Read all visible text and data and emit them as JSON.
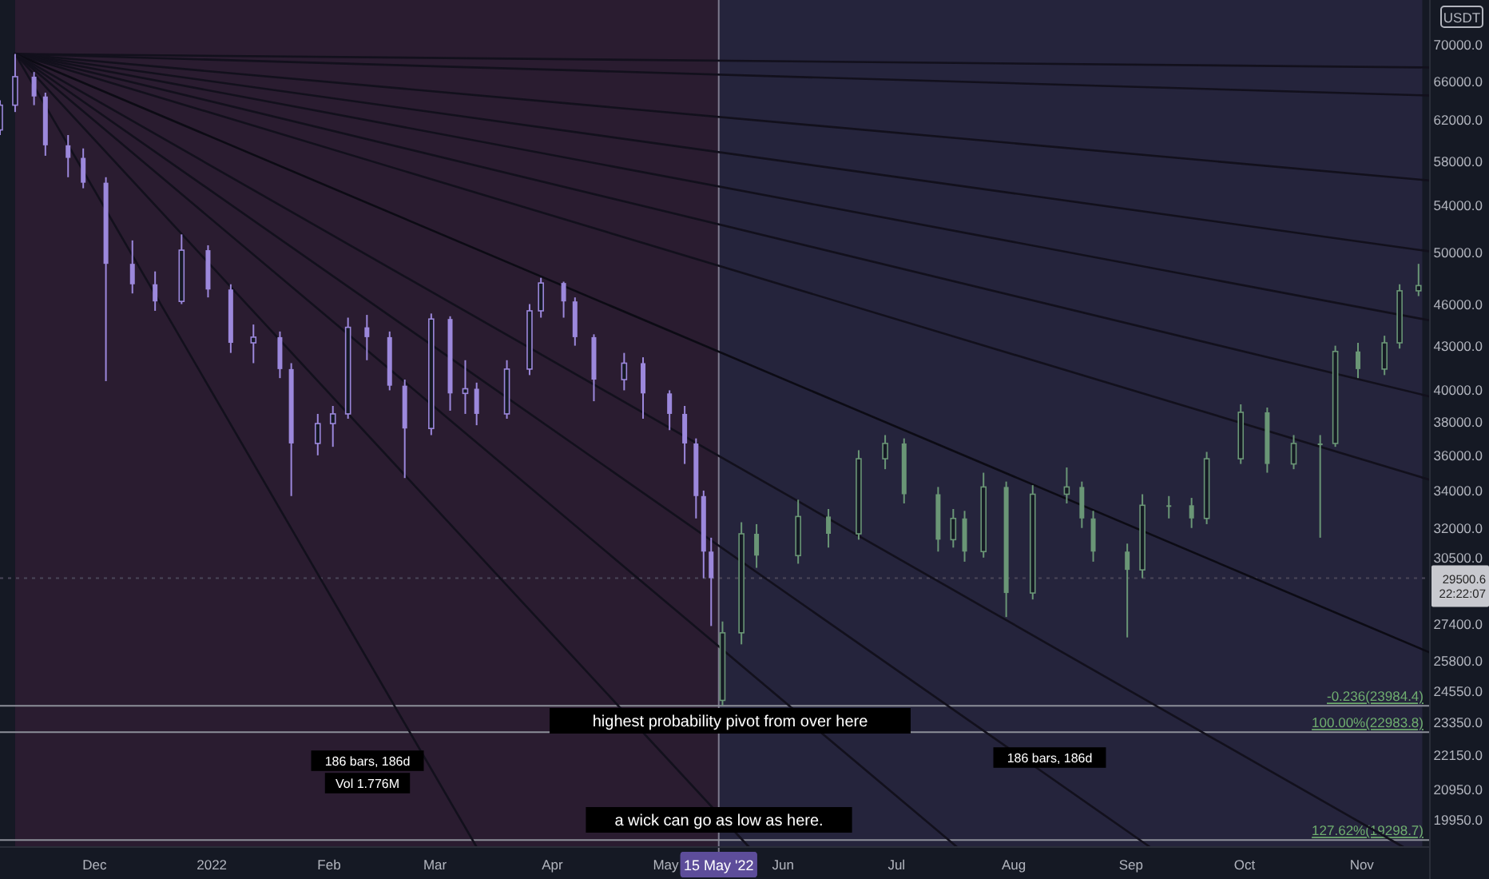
{
  "chart_data": {
    "type": "candlestick",
    "ylabel": "USDT",
    "log": "y",
    "xlim": [
      "2021-11-06",
      "2022-11-19"
    ],
    "ylim": [
      19080,
      75300
    ],
    "xticks": [
      {
        "value": "2021-12-01",
        "label": "Dec"
      },
      {
        "value": "2022-01-01",
        "label": "2022"
      },
      {
        "value": "2022-02-01",
        "label": "Feb"
      },
      {
        "value": "2022-03-01",
        "label": "Mar"
      },
      {
        "value": "2022-04-01",
        "label": "Apr"
      },
      {
        "value": "2022-05-01",
        "label": "May"
      },
      {
        "value": "2022-06-01",
        "label": "Jun"
      },
      {
        "value": "2022-07-01",
        "label": "Jul"
      },
      {
        "value": "2022-08-01",
        "label": "Aug"
      },
      {
        "value": "2022-09-01",
        "label": "Sep"
      },
      {
        "value": "2022-10-01",
        "label": "Oct"
      },
      {
        "value": "2022-11-01",
        "label": "Nov"
      }
    ],
    "yticks": [
      {
        "value": 70000,
        "label": "70000.0"
      },
      {
        "value": 66000,
        "label": "66000.0"
      },
      {
        "value": 62000,
        "label": "62000.0"
      },
      {
        "value": 58000,
        "label": "58000.0"
      },
      {
        "value": 54000,
        "label": "54000.0"
      },
      {
        "value": 50000,
        "label": "50000.0"
      },
      {
        "value": 46000,
        "label": "46000.0"
      },
      {
        "value": 43000,
        "label": "43000.0"
      },
      {
        "value": 40000,
        "label": "40000.0"
      },
      {
        "value": 38000,
        "label": "38000.0"
      },
      {
        "value": 36000,
        "label": "36000.0"
      },
      {
        "value": 34000,
        "label": "34000.0"
      },
      {
        "value": 32000,
        "label": "32000.0"
      },
      {
        "value": 30500,
        "label": "30500.0"
      },
      {
        "value": 27400,
        "label": "27400.0"
      },
      {
        "value": 25800,
        "label": "25800.0"
      },
      {
        "value": 24550,
        "label": "24550.0"
      },
      {
        "value": 23350,
        "label": "23350.0"
      },
      {
        "value": 22150,
        "label": "22150.0"
      },
      {
        "value": 20950,
        "label": "20950.0"
      },
      {
        "value": 19950,
        "label": "19950.0"
      }
    ],
    "bands": [
      {
        "axis": "x",
        "from": "2021-11-10",
        "to": "2022-05-15",
        "color": "#2a1c30"
      },
      {
        "axis": "x",
        "from": "2022-05-15",
        "to": "2022-11-17",
        "color": "#25243c"
      }
    ],
    "ref_lines": [
      {
        "axis": "y",
        "value": 29500.6,
        "label": "29500.6",
        "color": "#4a4658",
        "line_style": "dotted"
      },
      {
        "axis": "x",
        "value": "2022-05-15",
        "label": "15 May '22",
        "color": "#7d7a8c",
        "line_style": "solid"
      },
      {
        "axis": "y",
        "value": 23984.4,
        "label": "-0.236(23984.4)",
        "color": "#8d8f99",
        "line_style": "solid"
      },
      {
        "axis": "y",
        "value": 22983.8,
        "label": "100.00%(22983.8)",
        "color": "#8d8f99",
        "line_style": "solid"
      },
      {
        "axis": "y",
        "value": 19298.7,
        "label": "127.62%(19298.7)",
        "color": "#8d8f99",
        "line_style": "solid"
      }
    ],
    "annotations": [
      "22:22:07",
      "highest probability pivot from over here",
      "a wick can go as low as here.",
      "186 bars, 186d",
      "Vol 1.776M",
      "186 bars, 186d"
    ],
    "series": [
      {
        "type": "line",
        "color": "#12101c",
        "x": [
          "2021-11-10",
          "2022-11-19"
        ],
        "values": [
          69000,
          67500
        ]
      },
      {
        "type": "line",
        "color": "#12101c",
        "x": [
          "2021-11-10",
          "2022-11-19"
        ],
        "values": [
          69000,
          64500
        ]
      },
      {
        "type": "line",
        "color": "#12101c",
        "x": [
          "2021-11-10",
          "2022-11-19"
        ],
        "values": [
          69000,
          56200
        ]
      },
      {
        "type": "line",
        "color": "#12101c",
        "x": [
          "2021-11-10",
          "2022-11-19"
        ],
        "values": [
          69000,
          50100
        ]
      },
      {
        "type": "line",
        "color": "#12101c",
        "x": [
          "2021-11-10",
          "2022-11-19"
        ],
        "values": [
          69000,
          44800
        ]
      },
      {
        "type": "line",
        "color": "#12101c",
        "x": [
          "2021-11-10",
          "2022-11-19"
        ],
        "values": [
          69000,
          39600
        ]
      },
      {
        "type": "line",
        "color": "#12101c",
        "x": [
          "2021-11-10",
          "2022-11-19"
        ],
        "values": [
          69000,
          34600
        ]
      },
      {
        "type": "line",
        "color": "#0c0b14",
        "x": [
          "2021-11-10",
          "2022-11-19"
        ],
        "values": [
          69000,
          26150
        ]
      },
      {
        "type": "line",
        "color": "#12101c",
        "x": [
          "2021-11-10",
          "2022-03-12"
        ],
        "values": [
          69000,
          19080
        ]
      },
      {
        "type": "line",
        "color": "#12101c",
        "x": [
          "2021-11-10",
          "2022-05-23"
        ],
        "values": [
          69000,
          19080
        ]
      },
      {
        "type": "line",
        "color": "#12101c",
        "x": [
          "2021-11-10",
          "2022-07-17"
        ],
        "values": [
          69000,
          19080
        ]
      },
      {
        "type": "line",
        "color": "#12101c",
        "x": [
          "2021-11-10",
          "2022-09-06"
        ],
        "values": [
          69000,
          19080
        ]
      },
      {
        "type": "line",
        "color": "#12101c",
        "x": [
          "2021-11-10",
          "2022-11-12"
        ],
        "values": [
          69000,
          19080
        ]
      },
      {
        "color": "#9c88dc",
        "x": [
          "2021-11-06",
          "2021-11-10",
          "2021-11-15",
          "2021-11-18",
          "2021-11-24",
          "2021-11-28",
          "2021-12-04",
          "2021-12-11",
          "2021-12-17",
          "2021-12-24",
          "2021-12-31",
          "2022-01-06",
          "2022-01-12",
          "2022-01-19",
          "2022-01-22",
          "2022-01-29",
          "2022-02-02",
          "2022-02-06",
          "2022-02-11",
          "2022-02-17",
          "2022-02-21",
          "2022-02-28",
          "2022-03-05",
          "2022-03-09",
          "2022-03-12",
          "2022-03-20",
          "2022-03-26",
          "2022-03-29",
          "2022-04-04",
          "2022-04-07",
          "2022-04-12",
          "2022-04-20",
          "2022-04-25",
          "2022-05-02",
          "2022-05-06",
          "2022-05-09",
          "2022-05-11",
          "2022-05-13"
        ],
        "ohlc": [
          [
            61000,
            64000,
            60500,
            63500
          ],
          [
            63500,
            69000,
            62800,
            66500
          ],
          [
            66500,
            67000,
            63500,
            64400
          ],
          [
            64400,
            64800,
            58500,
            59500
          ],
          [
            59500,
            60500,
            56500,
            58300
          ],
          [
            58300,
            59200,
            55500,
            56000
          ],
          [
            56000,
            56500,
            40600,
            49100
          ],
          [
            49100,
            51000,
            46800,
            47500
          ],
          [
            47500,
            48500,
            45500,
            46200
          ],
          [
            46200,
            51500,
            46000,
            50200
          ],
          [
            50200,
            50600,
            46500,
            47100
          ],
          [
            47100,
            47500,
            42500,
            43200
          ],
          [
            43200,
            44500,
            41800,
            43600
          ],
          [
            43600,
            44000,
            40800,
            41400
          ],
          [
            41400,
            41800,
            33700,
            36700
          ],
          [
            36700,
            38500,
            36000,
            37900
          ],
          [
            37900,
            39000,
            36500,
            38500
          ],
          [
            38500,
            45000,
            38200,
            44300
          ],
          [
            44300,
            45200,
            42000,
            43600
          ],
          [
            43600,
            44000,
            40000,
            40300
          ],
          [
            40300,
            40700,
            34700,
            37600
          ],
          [
            37600,
            45300,
            37200,
            44900
          ],
          [
            44900,
            45100,
            38700,
            39800
          ],
          [
            39800,
            42000,
            38500,
            40100
          ],
          [
            40100,
            40500,
            37800,
            38500
          ],
          [
            38500,
            42000,
            38200,
            41400
          ],
          [
            41400,
            46000,
            41000,
            45500
          ],
          [
            45500,
            48000,
            45000,
            47600
          ],
          [
            47600,
            47700,
            45000,
            46200
          ],
          [
            46200,
            46500,
            43000,
            43600
          ],
          [
            43600,
            43800,
            39300,
            40700
          ],
          [
            40700,
            42500,
            40000,
            41800
          ],
          [
            41800,
            42200,
            38200,
            39800
          ],
          [
            39800,
            40000,
            37500,
            38500
          ],
          [
            38500,
            39000,
            35500,
            36700
          ],
          [
            36700,
            37000,
            32500,
            33700
          ],
          [
            33700,
            34000,
            29500,
            30800
          ],
          [
            30800,
            31500,
            27300,
            29500
          ]
        ]
      },
      {
        "color": "#6a9676",
        "x": [
          "2022-05-16",
          "2022-05-21",
          "2022-05-25",
          "2022-06-05",
          "2022-06-13",
          "2022-06-21",
          "2022-06-28",
          "2022-07-03",
          "2022-07-12",
          "2022-07-16",
          "2022-07-19",
          "2022-07-24",
          "2022-07-30",
          "2022-08-06",
          "2022-08-15",
          "2022-08-19",
          "2022-08-22",
          "2022-08-31",
          "2022-09-04",
          "2022-09-11",
          "2022-09-17",
          "2022-09-21",
          "2022-09-30",
          "2022-10-07",
          "2022-10-14",
          "2022-10-21",
          "2022-10-25",
          "2022-10-31",
          "2022-11-07",
          "2022-11-11",
          "2022-11-16"
        ],
        "ohlc": [
          [
            24200,
            27500,
            24000,
            27000
          ],
          [
            27000,
            32300,
            26500,
            31700
          ],
          [
            31700,
            32200,
            30000,
            30600
          ],
          [
            30600,
            33500,
            30200,
            32600
          ],
          [
            32600,
            33000,
            31000,
            31700
          ],
          [
            31700,
            36300,
            31400,
            35800
          ],
          [
            35800,
            37200,
            35200,
            36700
          ],
          [
            36700,
            37000,
            33300,
            33800
          ],
          [
            33800,
            34200,
            30800,
            31400
          ],
          [
            31400,
            33000,
            31000,
            32500
          ],
          [
            32500,
            32900,
            30300,
            30800
          ],
          [
            30800,
            35000,
            30500,
            34200
          ],
          [
            34200,
            34500,
            27700,
            28800
          ],
          [
            28800,
            34300,
            28500,
            33800
          ],
          [
            33800,
            35300,
            33300,
            34200
          ],
          [
            34200,
            34500,
            32000,
            32500
          ],
          [
            32500,
            32900,
            30300,
            30800
          ],
          [
            30800,
            31200,
            26800,
            29900
          ],
          [
            29900,
            33800,
            29500,
            33200
          ],
          [
            33200,
            33700,
            32500,
            33200
          ],
          [
            33200,
            33600,
            32000,
            32500
          ],
          [
            32500,
            36200,
            32200,
            35800
          ],
          [
            35800,
            39100,
            35500,
            38600
          ],
          [
            38600,
            38900,
            35000,
            35500
          ],
          [
            35500,
            37200,
            35200,
            36700
          ],
          [
            36700,
            37200,
            31500,
            36700
          ],
          [
            36700,
            43000,
            36500,
            42600
          ],
          [
            42600,
            43200,
            40800,
            41400
          ],
          [
            41400,
            43700,
            41000,
            43200
          ],
          [
            43200,
            47500,
            42800,
            47000
          ],
          [
            47000,
            49100,
            46600,
            47400
          ]
        ]
      }
    ]
  }
}
